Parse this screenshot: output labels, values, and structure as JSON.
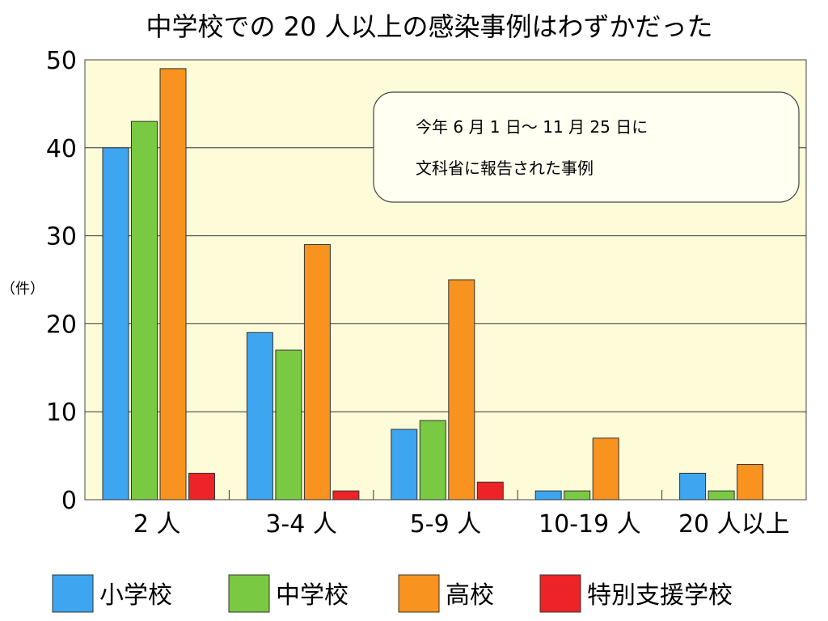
{
  "chart_data": {
    "type": "bar",
    "title": "中学校での 20 人以上の感染事例はわずかだった",
    "ylabel": "（件）",
    "ylim": [
      0,
      50
    ],
    "yticks": [
      0,
      10,
      20,
      30,
      40,
      50
    ],
    "categories": [
      "2 人",
      "3-4 人",
      "5-9 人",
      "10-19 人",
      "20 人以上"
    ],
    "series": [
      {
        "name": "小学校",
        "color": "#3ea5f0",
        "values": [
          40,
          19,
          8,
          1,
          3
        ]
      },
      {
        "name": "中学校",
        "color": "#7ac943",
        "values": [
          43,
          17,
          9,
          1,
          1
        ]
      },
      {
        "name": "高校",
        "color": "#f7931e",
        "values": [
          49,
          29,
          25,
          7,
          4
        ]
      },
      {
        "name": "特別支援学校",
        "color": "#ee2328",
        "values": [
          3,
          1,
          2,
          0,
          0
        ]
      }
    ],
    "annotation": [
      "今年 6 月 1 日～ 11 月 25 日に",
      "文科省に報告された事例"
    ],
    "grid": true,
    "legend_position": "bottom",
    "plot_background": "#fdfbd8"
  }
}
